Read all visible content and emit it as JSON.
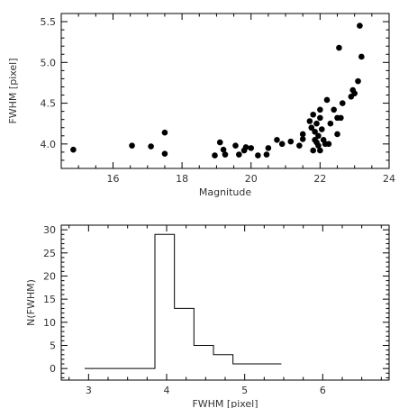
{
  "chart_data": [
    {
      "type": "scatter",
      "xlabel": "Magnitude",
      "ylabel": "FWHM [pixel]",
      "xlim": [
        14.5,
        24
      ],
      "ylim": [
        3.7,
        5.6
      ],
      "xticks": [
        16,
        18,
        20,
        22,
        24
      ],
      "yticks": [
        4.0,
        4.5,
        5.0,
        5.5
      ],
      "yticklabels": [
        "4.0",
        "4.5",
        "5.0",
        "5.5"
      ],
      "marker_color": "#000000",
      "points": [
        [
          14.85,
          3.93
        ],
        [
          16.55,
          3.98
        ],
        [
          17.1,
          3.97
        ],
        [
          17.5,
          3.88
        ],
        [
          17.5,
          4.14
        ],
        [
          18.95,
          3.86
        ],
        [
          19.1,
          4.02
        ],
        [
          19.2,
          3.93
        ],
        [
          19.25,
          3.87
        ],
        [
          19.55,
          3.98
        ],
        [
          19.65,
          3.87
        ],
        [
          19.8,
          3.92
        ],
        [
          19.85,
          3.96
        ],
        [
          20.0,
          3.95
        ],
        [
          20.2,
          3.86
        ],
        [
          20.5,
          3.95
        ],
        [
          20.45,
          3.87
        ],
        [
          20.75,
          4.05
        ],
        [
          20.9,
          4.0
        ],
        [
          21.15,
          4.03
        ],
        [
          21.4,
          3.98
        ],
        [
          21.5,
          4.06
        ],
        [
          21.5,
          4.12
        ],
        [
          21.7,
          4.28
        ],
        [
          21.8,
          4.36
        ],
        [
          21.75,
          4.2
        ],
        [
          21.8,
          3.92
        ],
        [
          21.85,
          4.15
        ],
        [
          21.85,
          4.05
        ],
        [
          21.9,
          4.25
        ],
        [
          21.95,
          4.1
        ],
        [
          21.95,
          3.98
        ],
        [
          22.0,
          3.92
        ],
        [
          22.0,
          4.32
        ],
        [
          22.05,
          4.18
        ],
        [
          22.1,
          4.05
        ],
        [
          22.15,
          4.0
        ],
        [
          22.2,
          4.54
        ],
        [
          22.25,
          4.0
        ],
        [
          22.3,
          4.25
        ],
        [
          22.4,
          4.42
        ],
        [
          22.5,
          4.32
        ],
        [
          22.5,
          4.12
        ],
        [
          22.55,
          5.18
        ],
        [
          22.6,
          4.32
        ],
        [
          22.65,
          4.5
        ],
        [
          22.9,
          4.58
        ],
        [
          22.95,
          4.66
        ],
        [
          23.0,
          4.62
        ],
        [
          23.1,
          4.77
        ],
        [
          23.15,
          5.45
        ],
        [
          23.2,
          5.07
        ],
        [
          22.0,
          4.42
        ],
        [
          21.9,
          4.02
        ]
      ]
    },
    {
      "type": "histogram",
      "xlabel": "FWHM [pixel]",
      "ylabel": "N(FWHM)",
      "xlim": [
        2.65,
        6.85
      ],
      "ylim": [
        -2.5,
        31
      ],
      "xticks": [
        3,
        4,
        5,
        6
      ],
      "yticks": [
        0,
        5,
        10,
        15,
        20,
        25,
        30
      ],
      "line_color": "#000000",
      "bins": [
        {
          "x0": 2.95,
          "x1": 3.85,
          "count": 0
        },
        {
          "x0": 3.85,
          "x1": 4.1,
          "count": 29
        },
        {
          "x0": 4.1,
          "x1": 4.35,
          "count": 13
        },
        {
          "x0": 4.35,
          "x1": 4.6,
          "count": 5
        },
        {
          "x0": 4.6,
          "x1": 4.85,
          "count": 3
        },
        {
          "x0": 4.85,
          "x1": 5.47,
          "count": 1
        }
      ]
    }
  ]
}
